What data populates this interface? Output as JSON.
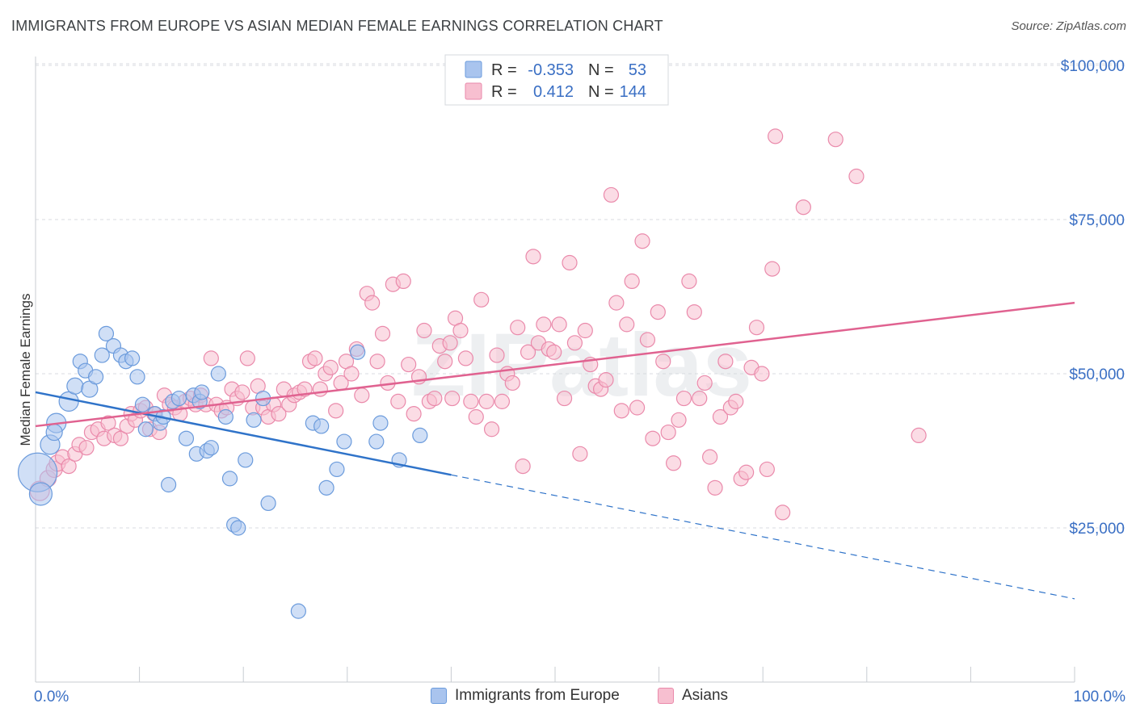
{
  "title": "IMMIGRANTS FROM EUROPE VS ASIAN MEDIAN FEMALE EARNINGS CORRELATION CHART",
  "source": "Source: ZipAtlas.com",
  "watermark": "ZIPatlas",
  "colors": {
    "blue_fill": "#a9c4ee",
    "blue_stroke": "#6b9bdc",
    "blue_line": "#2f73c9",
    "pink_fill": "#f7bfd0",
    "pink_stroke": "#ea8aab",
    "pink_line": "#e06290",
    "grid": "#d8dbe0",
    "tick_text": "#3a6fc4"
  },
  "legend": {
    "rows": [
      {
        "r_label": "R =",
        "r_value": "-0.353",
        "n_label": "N =",
        "n_value": "53"
      },
      {
        "r_label": "R =",
        "r_value": "0.412",
        "n_label": "N =",
        "n_value": "144"
      }
    ]
  },
  "bottom_legend": {
    "series_a": "Immigrants from Europe",
    "series_b": "Asians"
  },
  "chart_data": {
    "type": "scatter",
    "xlabel": "",
    "ylabel": "Median Female Earnings",
    "xlim": [
      0,
      100
    ],
    "ylim": [
      0,
      105000
    ],
    "x_tick_labels": [
      "0.0%",
      "100.0%"
    ],
    "y_ticks": [
      25000,
      50000,
      75000,
      100000
    ],
    "y_tick_labels": [
      "$25,000",
      "$50,000",
      "$75,000",
      "$100,000"
    ],
    "grid": true,
    "series": [
      {
        "name": "Immigrants from Europe",
        "trend": {
          "x0": 0,
          "y0": 47000,
          "x_solid_end": 40,
          "x1": 100,
          "y1": 13500
        },
        "points": [
          [
            0.2,
            34000,
            24
          ],
          [
            0.5,
            30500,
            14
          ],
          [
            1.4,
            38500,
            12
          ],
          [
            2.0,
            42000,
            12
          ],
          [
            1.8,
            40500,
            10
          ],
          [
            3.2,
            45500,
            12
          ],
          [
            3.8,
            48000,
            10
          ],
          [
            5.2,
            47500,
            10
          ],
          [
            4.3,
            52000,
            9
          ],
          [
            4.8,
            50500,
            9
          ],
          [
            5.8,
            49500,
            9
          ],
          [
            6.4,
            53000,
            9
          ],
          [
            6.8,
            56500,
            9
          ],
          [
            7.5,
            54500,
            9
          ],
          [
            8.2,
            53000,
            9
          ],
          [
            8.7,
            52000,
            9
          ],
          [
            9.3,
            52500,
            9
          ],
          [
            9.8,
            49500,
            9
          ],
          [
            10.3,
            45000,
            9
          ],
          [
            10.6,
            41000,
            9
          ],
          [
            11.5,
            43500,
            9
          ],
          [
            12.0,
            42000,
            9
          ],
          [
            12.3,
            43000,
            9
          ],
          [
            12.8,
            32000,
            9
          ],
          [
            13.2,
            45500,
            9
          ],
          [
            13.8,
            46000,
            9
          ],
          [
            14.5,
            39500,
            9
          ],
          [
            15.2,
            46500,
            9
          ],
          [
            15.5,
            37000,
            9
          ],
          [
            15.8,
            45500,
            9
          ],
          [
            16.0,
            47000,
            9
          ],
          [
            16.5,
            37500,
            9
          ],
          [
            16.9,
            38000,
            9
          ],
          [
            17.6,
            50000,
            9
          ],
          [
            18.3,
            43000,
            9
          ],
          [
            18.7,
            33000,
            9
          ],
          [
            19.1,
            25500,
            9
          ],
          [
            19.5,
            25000,
            9
          ],
          [
            20.2,
            36000,
            9
          ],
          [
            21.0,
            42500,
            9
          ],
          [
            21.9,
            46000,
            9
          ],
          [
            22.4,
            29000,
            9
          ],
          [
            25.3,
            11500,
            9
          ],
          [
            26.7,
            42000,
            9
          ],
          [
            27.5,
            41500,
            9
          ],
          [
            28.0,
            31500,
            9
          ],
          [
            29.0,
            34500,
            9
          ],
          [
            29.7,
            39000,
            9
          ],
          [
            31.0,
            53500,
            9
          ],
          [
            32.8,
            39000,
            9
          ],
          [
            33.2,
            42000,
            9
          ],
          [
            35.0,
            36000,
            9
          ],
          [
            37.0,
            40000,
            9
          ]
        ]
      },
      {
        "name": "Asians",
        "trend": {
          "x0": 0,
          "y0": 41500,
          "x1": 100,
          "y1": 61500
        },
        "points": [
          [
            0.4,
            31000,
            12
          ],
          [
            1.2,
            33000,
            10
          ],
          [
            1.8,
            34500,
            10
          ],
          [
            2.1,
            35500,
            10
          ],
          [
            2.6,
            36500,
            9
          ],
          [
            3.2,
            35000,
            9
          ],
          [
            3.8,
            37000,
            9
          ],
          [
            4.2,
            38500,
            9
          ],
          [
            4.9,
            38000,
            9
          ],
          [
            5.4,
            40500,
            9
          ],
          [
            6.0,
            41000,
            9
          ],
          [
            6.6,
            39500,
            9
          ],
          [
            7.0,
            42000,
            9
          ],
          [
            7.6,
            40000,
            9
          ],
          [
            8.2,
            39500,
            9
          ],
          [
            8.8,
            41500,
            9
          ],
          [
            9.2,
            43500,
            9
          ],
          [
            9.6,
            42500,
            9
          ],
          [
            10.1,
            44000,
            9
          ],
          [
            10.6,
            44500,
            9
          ],
          [
            11.0,
            41000,
            9
          ],
          [
            11.4,
            43500,
            9
          ],
          [
            11.9,
            40500,
            9
          ],
          [
            12.4,
            46500,
            9
          ],
          [
            12.9,
            45000,
            9
          ],
          [
            13.4,
            44500,
            9
          ],
          [
            13.9,
            43500,
            9
          ],
          [
            14.4,
            45500,
            9
          ],
          [
            14.9,
            46000,
            9
          ],
          [
            15.4,
            45000,
            9
          ],
          [
            15.9,
            46500,
            9
          ],
          [
            16.4,
            45000,
            9
          ],
          [
            16.9,
            52500,
            9
          ],
          [
            17.4,
            45000,
            9
          ],
          [
            17.9,
            44000,
            9
          ],
          [
            18.4,
            44500,
            9
          ],
          [
            18.9,
            47500,
            9
          ],
          [
            19.4,
            46000,
            9
          ],
          [
            19.9,
            47000,
            9
          ],
          [
            20.4,
            52500,
            9
          ],
          [
            20.9,
            44500,
            9
          ],
          [
            21.4,
            48000,
            9
          ],
          [
            21.9,
            44500,
            9
          ],
          [
            22.4,
            43000,
            9
          ],
          [
            22.9,
            45000,
            9
          ],
          [
            23.4,
            43500,
            9
          ],
          [
            23.9,
            47500,
            9
          ],
          [
            24.4,
            45000,
            9
          ],
          [
            24.9,
            46500,
            9
          ],
          [
            25.4,
            47000,
            9
          ],
          [
            25.9,
            47500,
            9
          ],
          [
            26.4,
            52000,
            9
          ],
          [
            26.9,
            52500,
            9
          ],
          [
            27.4,
            47500,
            9
          ],
          [
            27.9,
            50000,
            9
          ],
          [
            28.4,
            51000,
            9
          ],
          [
            28.9,
            44000,
            9
          ],
          [
            29.4,
            48500,
            9
          ],
          [
            29.9,
            52000,
            9
          ],
          [
            30.4,
            50000,
            9
          ],
          [
            30.9,
            54000,
            9
          ],
          [
            31.4,
            46500,
            9
          ],
          [
            31.9,
            63000,
            9
          ],
          [
            32.4,
            61500,
            9
          ],
          [
            32.9,
            52000,
            9
          ],
          [
            33.4,
            56500,
            9
          ],
          [
            33.9,
            48500,
            9
          ],
          [
            34.4,
            64500,
            9
          ],
          [
            34.9,
            45500,
            9
          ],
          [
            35.4,
            65000,
            9
          ],
          [
            35.9,
            51500,
            9
          ],
          [
            36.4,
            43500,
            9
          ],
          [
            36.9,
            49500,
            9
          ],
          [
            37.4,
            57000,
            9
          ],
          [
            37.9,
            45500,
            9
          ],
          [
            38.4,
            46000,
            9
          ],
          [
            38.9,
            54500,
            9
          ],
          [
            39.4,
            52000,
            9
          ],
          [
            39.9,
            55000,
            9
          ],
          [
            40.4,
            59000,
            9
          ],
          [
            40.9,
            57000,
            9
          ],
          [
            41.4,
            52500,
            9
          ],
          [
            41.9,
            45500,
            9
          ],
          [
            42.4,
            43000,
            9
          ],
          [
            42.9,
            62000,
            9
          ],
          [
            43.4,
            45500,
            9
          ],
          [
            43.9,
            41000,
            9
          ],
          [
            44.4,
            53000,
            9
          ],
          [
            44.9,
            45500,
            9
          ],
          [
            45.4,
            50000,
            9
          ],
          [
            45.9,
            48500,
            9
          ],
          [
            46.4,
            57500,
            9
          ],
          [
            46.9,
            35000,
            9
          ],
          [
            47.4,
            53500,
            9
          ],
          [
            47.9,
            69000,
            9
          ],
          [
            48.4,
            55000,
            9
          ],
          [
            48.9,
            58000,
            9
          ],
          [
            49.4,
            54000,
            9
          ],
          [
            49.9,
            53500,
            9
          ],
          [
            50.4,
            58000,
            9
          ],
          [
            50.9,
            46000,
            9
          ],
          [
            51.4,
            68000,
            9
          ],
          [
            51.9,
            55000,
            9
          ],
          [
            52.4,
            37000,
            9
          ],
          [
            52.9,
            57000,
            9
          ],
          [
            53.4,
            51500,
            9
          ],
          [
            53.9,
            48000,
            9
          ],
          [
            54.4,
            47500,
            9
          ],
          [
            54.9,
            49000,
            9
          ],
          [
            55.4,
            79000,
            9
          ],
          [
            55.9,
            61500,
            9
          ],
          [
            56.4,
            44000,
            9
          ],
          [
            56.9,
            58000,
            9
          ],
          [
            57.4,
            65000,
            9
          ],
          [
            57.9,
            44500,
            9
          ],
          [
            58.4,
            71500,
            9
          ],
          [
            58.9,
            55500,
            9
          ],
          [
            59.4,
            39500,
            9
          ],
          [
            59.9,
            60000,
            9
          ],
          [
            60.4,
            52000,
            9
          ],
          [
            60.9,
            40500,
            9
          ],
          [
            61.4,
            35500,
            9
          ],
          [
            61.9,
            42500,
            9
          ],
          [
            62.4,
            46000,
            9
          ],
          [
            62.9,
            65000,
            9
          ],
          [
            63.4,
            60000,
            9
          ],
          [
            63.9,
            46000,
            9
          ],
          [
            64.4,
            48500,
            9
          ],
          [
            64.9,
            36500,
            9
          ],
          [
            65.4,
            31500,
            9
          ],
          [
            65.9,
            43000,
            9
          ],
          [
            66.4,
            52000,
            9
          ],
          [
            66.9,
            44500,
            9
          ],
          [
            67.4,
            45500,
            9
          ],
          [
            67.9,
            33000,
            9
          ],
          [
            68.4,
            34000,
            9
          ],
          [
            68.9,
            51000,
            9
          ],
          [
            69.4,
            57500,
            9
          ],
          [
            69.9,
            50000,
            9
          ],
          [
            70.4,
            34500,
            9
          ],
          [
            70.9,
            67000,
            9
          ],
          [
            71.2,
            88500,
            9
          ],
          [
            71.9,
            27500,
            9
          ],
          [
            73.9,
            77000,
            9
          ],
          [
            77.0,
            88000,
            9
          ],
          [
            79.0,
            82000,
            9
          ],
          [
            85.0,
            40000,
            9
          ],
          [
            40.1,
            46000,
            9
          ]
        ]
      }
    ]
  }
}
